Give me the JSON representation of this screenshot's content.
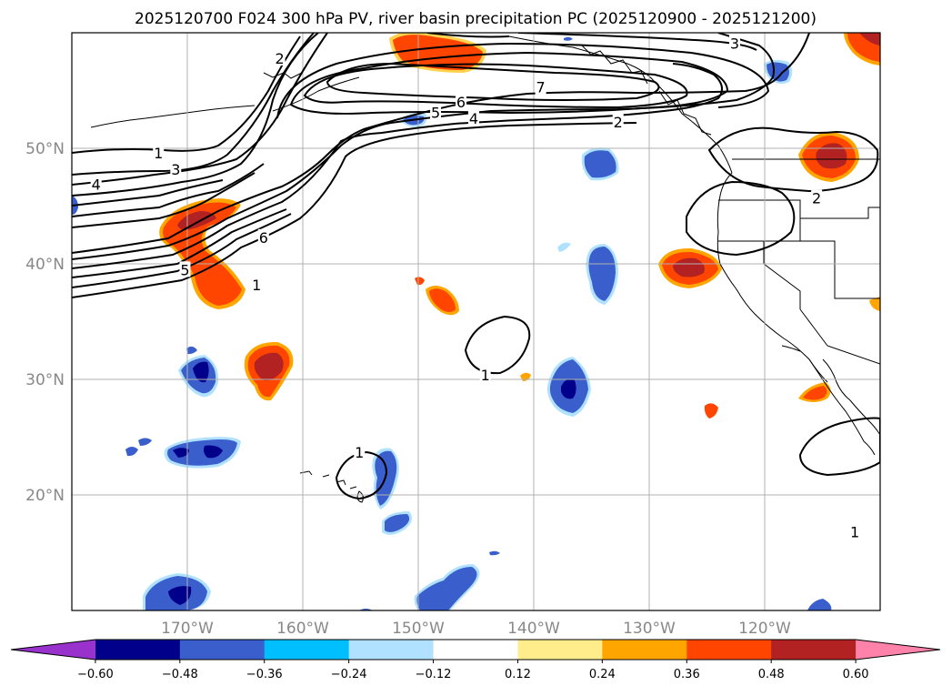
{
  "title": "2025120700 F024 300 hPa PV, river basin precipitation PC (2025120900 - 2025121200)",
  "map": {
    "lon_range": [
      -180,
      -110
    ],
    "lat_range": [
      10,
      60
    ],
    "lat_ticks": [
      {
        "value": 50,
        "label": "50°N"
      },
      {
        "value": 40,
        "label": "40°N"
      },
      {
        "value": 30,
        "label": "30°N"
      },
      {
        "value": 20,
        "label": "20°N"
      }
    ],
    "lon_ticks": [
      {
        "value": -170,
        "label": "170°W"
      },
      {
        "value": -160,
        "label": "160°W"
      },
      {
        "value": -150,
        "label": "150°W"
      },
      {
        "value": -140,
        "label": "140°W"
      },
      {
        "value": -130,
        "label": "130°W"
      },
      {
        "value": -120,
        "label": "120°W"
      }
    ]
  },
  "pv_contour_labels": [
    {
      "text": "2",
      "lon": -162,
      "lat": 57.8
    },
    {
      "text": "1",
      "lon": -172.5,
      "lat": 49.6
    },
    {
      "text": "3",
      "lon": -171,
      "lat": 48.2
    },
    {
      "text": "4",
      "lon": -177.9,
      "lat": 46.9
    },
    {
      "text": "6",
      "lon": -163.4,
      "lat": 42.3
    },
    {
      "text": "5",
      "lon": -170.2,
      "lat": 39.5
    },
    {
      "text": "1",
      "lon": -164,
      "lat": 38.2
    },
    {
      "text": "7",
      "lon": -139.4,
      "lat": 55.3
    },
    {
      "text": "6",
      "lon": -146.3,
      "lat": 54.0
    },
    {
      "text": "5",
      "lon": -148.5,
      "lat": 53.1
    },
    {
      "text": "4",
      "lon": -145.2,
      "lat": 52.6
    },
    {
      "text": "2",
      "lon": -132.7,
      "lat": 52.3
    },
    {
      "text": "3",
      "lon": -122.6,
      "lat": 59.1
    },
    {
      "text": "2",
      "lon": -115.5,
      "lat": 45.7
    },
    {
      "text": "1",
      "lon": -144.2,
      "lat": 30.4
    },
    {
      "text": "1",
      "lon": -155.1,
      "lat": 23.7
    },
    {
      "text": "1",
      "lon": -112.2,
      "lat": 16.8
    }
  ],
  "colorbar": {
    "colors": [
      "#9932cc",
      "#00008b",
      "#3a5fcd",
      "#00bfff",
      "#b0e2ff",
      "#ffffff",
      "#ffec8b",
      "#ffa500",
      "#ff4500",
      "#b22222",
      "#ff82ab"
    ],
    "tick_labels": [
      "−0.60",
      "−0.48",
      "−0.36",
      "−0.24",
      "−0.12",
      "0.12",
      "0.24",
      "0.36",
      "0.48",
      "0.60"
    ]
  }
}
